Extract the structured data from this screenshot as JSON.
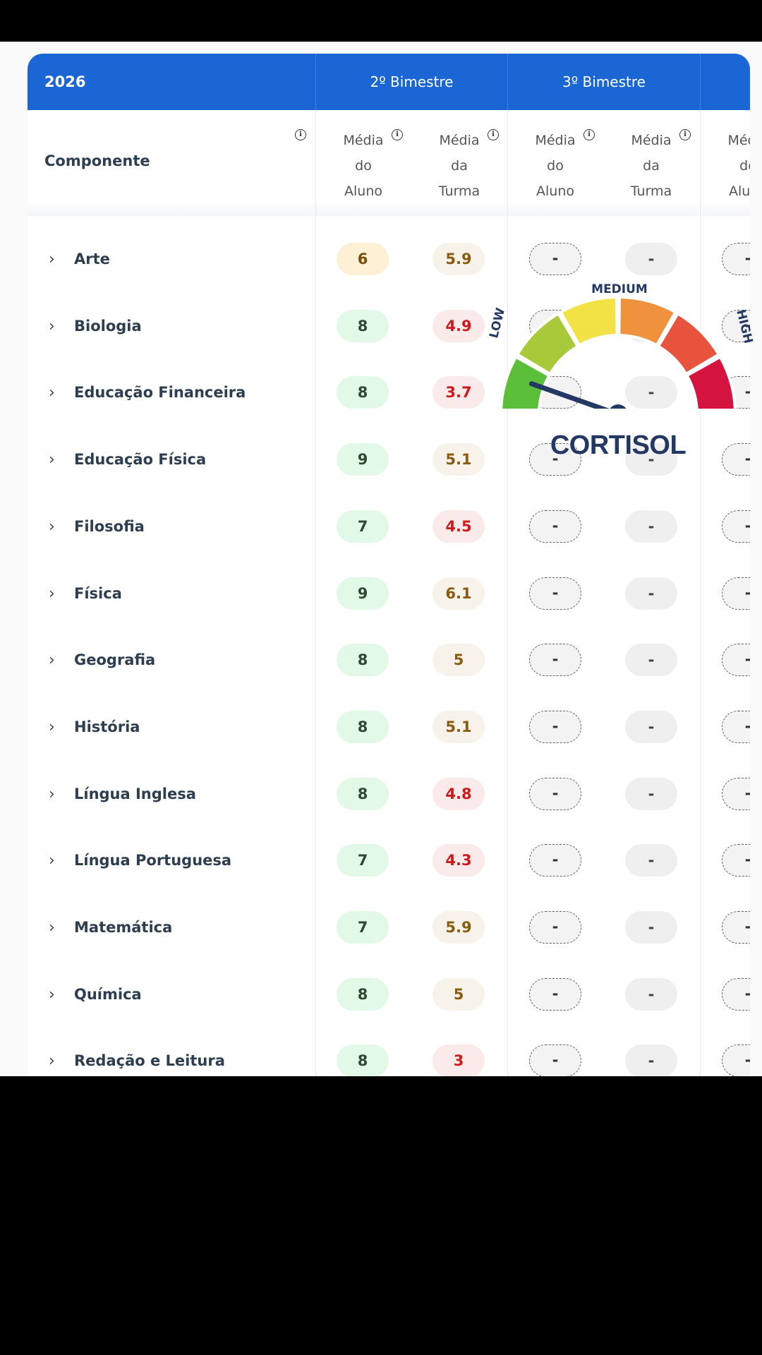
{
  "table": {
    "year": "2026",
    "periods": [
      "2º Bimestre",
      "3º Bimestre",
      ""
    ],
    "component_header": "Componente",
    "info_glyph": "i",
    "subcolumns": [
      {
        "line1": "Média",
        "line2": "do",
        "line3": "Aluno"
      },
      {
        "line1": "Média",
        "line2": "da",
        "line3": "Turma"
      },
      {
        "line1": "Média",
        "line2": "do",
        "line3": "Aluno"
      },
      {
        "line1": "Média",
        "line2": "da",
        "line3": "Turma"
      },
      {
        "line1": "Média",
        "line2": "do",
        "line3": "Aluno"
      }
    ],
    "chevron": "›",
    "empty_value": "-",
    "rows": [
      {
        "subject": "Arte",
        "aluno": "6",
        "aluno_status": "amber",
        "turma": "5.9",
        "turma_status": "tan"
      },
      {
        "subject": "Biologia",
        "aluno": "8",
        "aluno_status": "green",
        "turma": "4.9",
        "turma_status": "red"
      },
      {
        "subject": "Educação Financeira",
        "aluno": "8",
        "aluno_status": "green",
        "turma": "3.7",
        "turma_status": "red"
      },
      {
        "subject": "Educação Física",
        "aluno": "9",
        "aluno_status": "green",
        "turma": "5.1",
        "turma_status": "tan"
      },
      {
        "subject": "Filosofia",
        "aluno": "7",
        "aluno_status": "green",
        "turma": "4.5",
        "turma_status": "red"
      },
      {
        "subject": "Física",
        "aluno": "9",
        "aluno_status": "green",
        "turma": "6.1",
        "turma_status": "tan"
      },
      {
        "subject": "Geografia",
        "aluno": "8",
        "aluno_status": "green",
        "turma": "5",
        "turma_status": "tan"
      },
      {
        "subject": "História",
        "aluno": "8",
        "aluno_status": "green",
        "turma": "5.1",
        "turma_status": "tan"
      },
      {
        "subject": "Língua Inglesa",
        "aluno": "8",
        "aluno_status": "green",
        "turma": "4.8",
        "turma_status": "red"
      },
      {
        "subject": "Língua Portuguesa",
        "aluno": "7",
        "aluno_status": "green",
        "turma": "4.3",
        "turma_status": "red"
      },
      {
        "subject": "Matemática",
        "aluno": "7",
        "aluno_status": "green",
        "turma": "5.9",
        "turma_status": "tan"
      },
      {
        "subject": "Química",
        "aluno": "8",
        "aluno_status": "green",
        "turma": "5",
        "turma_status": "tan"
      },
      {
        "subject": "Redação e Leitura",
        "aluno": "8",
        "aluno_status": "green",
        "turma": "3",
        "turma_status": "red"
      }
    ]
  },
  "overlay": {
    "gauge_icon": "speedometer-gauge-icon",
    "low_label": "LOW",
    "medium_label": "MEDIUM",
    "high_label": "HIGH",
    "title": "CORTISOL",
    "level": 0.08,
    "segment_colors": [
      "#5bbf3a",
      "#a7c93a",
      "#f2e246",
      "#f0923d",
      "#e8533e",
      "#d4133f"
    ]
  },
  "colors": {
    "header_blue": "#1a66d4",
    "green_bg": "#e3f9e7",
    "red_text": "#cc1b1b"
  }
}
